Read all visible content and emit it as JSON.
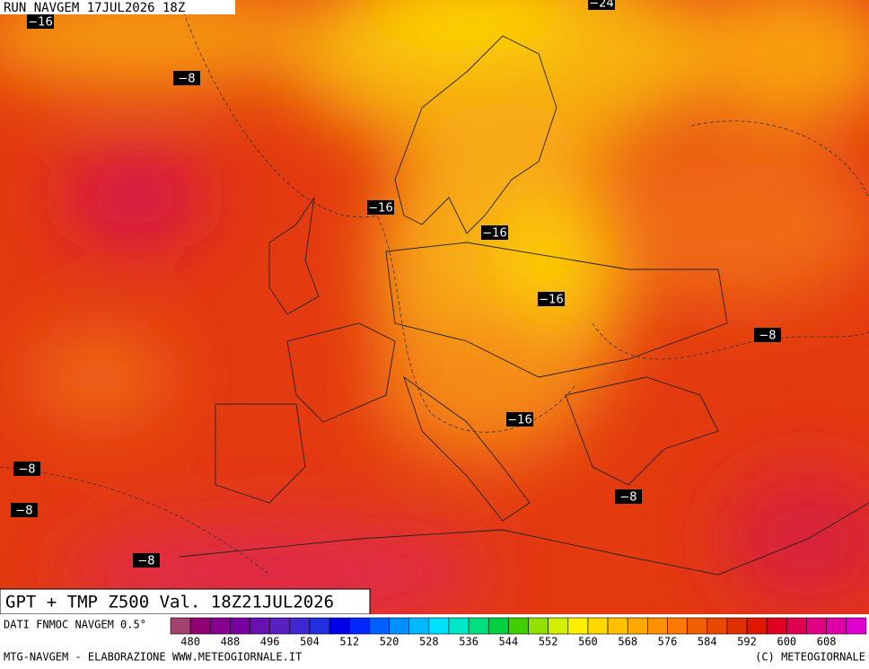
{
  "header": {
    "run": "RUN NAVGEM 17JUL2026 18Z"
  },
  "title": "GPT + TMP Z500 Val. 18Z21JUL2026",
  "contour_labels": [
    "−16",
    "−24",
    "−8",
    "−16",
    "−16",
    "−16",
    "−8",
    "−16",
    "−8",
    "−8",
    "−8",
    "−8"
  ],
  "colorbar": {
    "source": "DATI FNMOC NAVGEM 0.5°",
    "colors": [
      "#a2406e",
      "#900072",
      "#880090",
      "#7800a0",
      "#6810b0",
      "#5820c0",
      "#4028d0",
      "#2030e0",
      "#0000e8",
      "#0028ff",
      "#0060ff",
      "#0090ff",
      "#00b8ff",
      "#00e0ff",
      "#00e8c8",
      "#00e080",
      "#00d040",
      "#40d000",
      "#90e000",
      "#d0f000",
      "#fff000",
      "#ffd800",
      "#ffc000",
      "#ffa800",
      "#ff9000",
      "#ff7800",
      "#f06000",
      "#e84800",
      "#e03000",
      "#e01800",
      "#e00020",
      "#e00050",
      "#e00080",
      "#e000a8",
      "#e000d0"
    ],
    "labels": [
      480,
      488,
      496,
      504,
      512,
      520,
      528,
      536,
      544,
      552,
      560,
      568,
      576,
      584,
      592,
      600,
      608
    ]
  },
  "footer": {
    "left": "MTG-NAVGEM - ELABORAZIONE WWW.METEOGIORNALE.IT",
    "right": "(C) METEOGIORNALE"
  }
}
